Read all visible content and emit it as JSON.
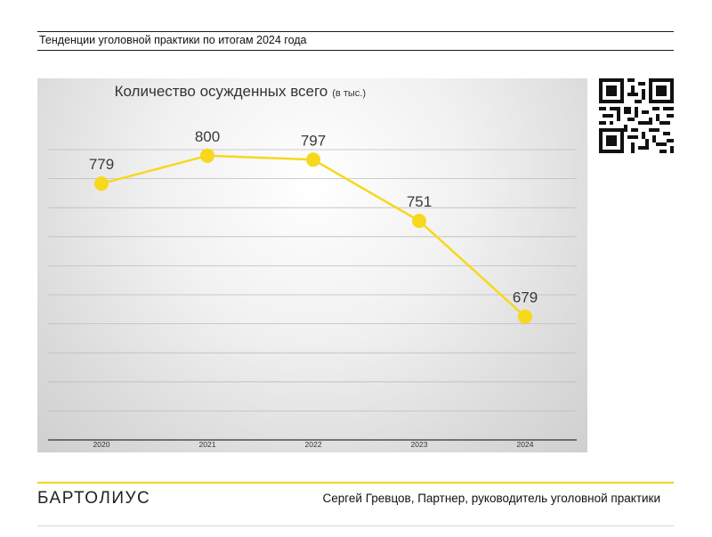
{
  "header": {
    "title": "Тенденции уголовной практики по итогам 2024 года"
  },
  "chart_data": {
    "type": "line",
    "title": "Количество осужденных всего",
    "title_unit": "(в тыс.)",
    "categories": [
      "2020",
      "2021",
      "2022",
      "2023",
      "2024"
    ],
    "values": [
      779,
      800,
      797,
      751,
      679
    ],
    "data_labels": [
      "779",
      "800",
      "797",
      "751",
      "679"
    ],
    "ylim": [
      589,
      830
    ],
    "grid": true,
    "legend": "none",
    "colors": {
      "line": "#f7d81c",
      "grid": "#bdbdbd",
      "label": "#3a3a3a"
    }
  },
  "qr_code": {
    "icon": "qr-code-icon"
  },
  "footer": {
    "brand": "БАРТОЛИУС",
    "author": "Сергей Гревцов, Партнер, руководитель уголовной практики"
  }
}
